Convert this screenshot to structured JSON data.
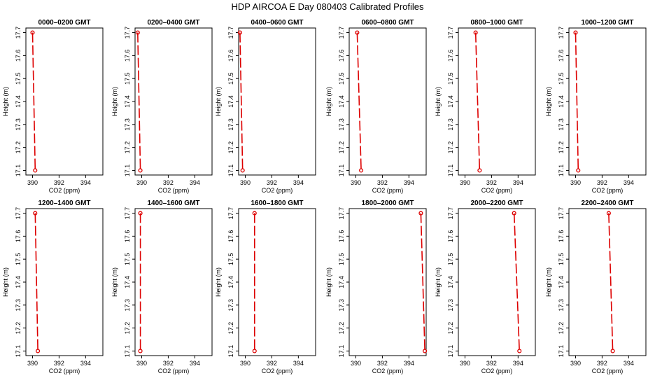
{
  "suptitle": "HDP AIRCOA E  Day 080403  Calibrated Profiles",
  "colors": {
    "series": "#dd0000",
    "axis": "#000000",
    "background": "#ffffff"
  },
  "chart_data": [
    {
      "type": "line",
      "title": "0000–0200 GMT",
      "xlabel": "CO2 (ppm)",
      "ylabel": "Height (m)",
      "xlim": [
        389.5,
        395.3
      ],
      "ylim": [
        17.08,
        17.72
      ],
      "xticks": [
        "390",
        "392",
        "394"
      ],
      "yticks": [
        "17.1",
        "17.2",
        "17.3",
        "17.4",
        "17.5",
        "17.6",
        "17.7"
      ],
      "points": [
        {
          "x": 390.0,
          "y": 17.7
        },
        {
          "x": 390.2,
          "y": 17.1
        }
      ]
    },
    {
      "type": "line",
      "title": "0200–0400 GMT",
      "xlabel": "CO2 (ppm)",
      "ylabel": "Height (m)",
      "xlim": [
        389.5,
        395.3
      ],
      "ylim": [
        17.08,
        17.72
      ],
      "xticks": [
        "390",
        "392",
        "394"
      ],
      "yticks": [
        "17.1",
        "17.2",
        "17.3",
        "17.4",
        "17.5",
        "17.6",
        "17.7"
      ],
      "points": [
        {
          "x": 389.7,
          "y": 17.7
        },
        {
          "x": 389.9,
          "y": 17.1
        }
      ]
    },
    {
      "type": "line",
      "title": "0400–0600 GMT",
      "xlabel": "CO2 (ppm)",
      "ylabel": "Height (m)",
      "xlim": [
        389.5,
        395.3
      ],
      "ylim": [
        17.08,
        17.72
      ],
      "xticks": [
        "390",
        "392",
        "394"
      ],
      "yticks": [
        "17.1",
        "17.2",
        "17.3",
        "17.4",
        "17.5",
        "17.6",
        "17.7"
      ],
      "points": [
        {
          "x": 389.6,
          "y": 17.7
        },
        {
          "x": 389.8,
          "y": 17.1
        }
      ]
    },
    {
      "type": "line",
      "title": "0600–0800 GMT",
      "xlabel": "CO2 (ppm)",
      "ylabel": "Height (m)",
      "xlim": [
        389.5,
        395.3
      ],
      "ylim": [
        17.08,
        17.72
      ],
      "xticks": [
        "390",
        "392",
        "394"
      ],
      "yticks": [
        "17.1",
        "17.2",
        "17.3",
        "17.4",
        "17.5",
        "17.6",
        "17.7"
      ],
      "points": [
        {
          "x": 390.1,
          "y": 17.7
        },
        {
          "x": 390.4,
          "y": 17.1
        }
      ]
    },
    {
      "type": "line",
      "title": "0800–1000 GMT",
      "xlabel": "CO2 (ppm)",
      "ylabel": "Height (m)",
      "xlim": [
        389.5,
        395.3
      ],
      "ylim": [
        17.08,
        17.72
      ],
      "xticks": [
        "390",
        "392",
        "394"
      ],
      "yticks": [
        "17.1",
        "17.2",
        "17.3",
        "17.4",
        "17.5",
        "17.6",
        "17.7"
      ],
      "points": [
        {
          "x": 390.8,
          "y": 17.7
        },
        {
          "x": 391.1,
          "y": 17.1
        }
      ]
    },
    {
      "type": "line",
      "title": "1000–1200 GMT",
      "xlabel": "CO2 (ppm)",
      "ylabel": "Height (m)",
      "xlim": [
        389.5,
        395.3
      ],
      "ylim": [
        17.08,
        17.72
      ],
      "xticks": [
        "390",
        "392",
        "394"
      ],
      "yticks": [
        "17.1",
        "17.2",
        "17.3",
        "17.4",
        "17.5",
        "17.6",
        "17.7"
      ],
      "points": [
        {
          "x": 390.0,
          "y": 17.7
        },
        {
          "x": 390.2,
          "y": 17.1
        }
      ]
    },
    {
      "type": "line",
      "title": "1200–1400 GMT",
      "xlabel": "CO2 (ppm)",
      "ylabel": "Height (m)",
      "xlim": [
        389.5,
        395.3
      ],
      "ylim": [
        17.08,
        17.72
      ],
      "xticks": [
        "390",
        "392",
        "394"
      ],
      "yticks": [
        "17.1",
        "17.2",
        "17.3",
        "17.4",
        "17.5",
        "17.6",
        "17.7"
      ],
      "points": [
        {
          "x": 390.2,
          "y": 17.7
        },
        {
          "x": 390.4,
          "y": 17.1
        }
      ]
    },
    {
      "type": "line",
      "title": "1400–1600 GMT",
      "xlabel": "CO2 (ppm)",
      "ylabel": "Height (m)",
      "xlim": [
        389.5,
        395.3
      ],
      "ylim": [
        17.08,
        17.72
      ],
      "xticks": [
        "390",
        "392",
        "394"
      ],
      "yticks": [
        "17.1",
        "17.2",
        "17.3",
        "17.4",
        "17.5",
        "17.6",
        "17.7"
      ],
      "points": [
        {
          "x": 389.9,
          "y": 17.7
        },
        {
          "x": 389.9,
          "y": 17.1
        }
      ]
    },
    {
      "type": "line",
      "title": "1600–1800 GMT",
      "xlabel": "CO2 (ppm)",
      "ylabel": "Height (m)",
      "xlim": [
        389.5,
        395.3
      ],
      "ylim": [
        17.08,
        17.72
      ],
      "xticks": [
        "390",
        "392",
        "394"
      ],
      "yticks": [
        "17.1",
        "17.2",
        "17.3",
        "17.4",
        "17.5",
        "17.6",
        "17.7"
      ],
      "points": [
        {
          "x": 390.7,
          "y": 17.7
        },
        {
          "x": 390.7,
          "y": 17.1
        }
      ]
    },
    {
      "type": "line",
      "title": "1800–2000 GMT",
      "xlabel": "CO2 (ppm)",
      "ylabel": "Height (m)",
      "xlim": [
        389.5,
        395.3
      ],
      "ylim": [
        17.08,
        17.72
      ],
      "xticks": [
        "390",
        "392",
        "394"
      ],
      "yticks": [
        "17.1",
        "17.2",
        "17.3",
        "17.4",
        "17.5",
        "17.6",
        "17.7"
      ],
      "points": [
        {
          "x": 394.9,
          "y": 17.7
        },
        {
          "x": 395.2,
          "y": 17.1
        }
      ]
    },
    {
      "type": "line",
      "title": "2000–2200 GMT",
      "xlabel": "CO2 (ppm)",
      "ylabel": "Height (m)",
      "xlim": [
        389.5,
        395.3
      ],
      "ylim": [
        17.08,
        17.72
      ],
      "xticks": [
        "390",
        "392",
        "394"
      ],
      "yticks": [
        "17.1",
        "17.2",
        "17.3",
        "17.4",
        "17.5",
        "17.6",
        "17.7"
      ],
      "points": [
        {
          "x": 393.7,
          "y": 17.7
        },
        {
          "x": 394.1,
          "y": 17.1
        }
      ]
    },
    {
      "type": "line",
      "title": "2200–2400 GMT",
      "xlabel": "CO2 (ppm)",
      "ylabel": "Height (m)",
      "xlim": [
        389.5,
        395.3
      ],
      "ylim": [
        17.08,
        17.72
      ],
      "xticks": [
        "390",
        "392",
        "394"
      ],
      "yticks": [
        "17.1",
        "17.2",
        "17.3",
        "17.4",
        "17.5",
        "17.6",
        "17.7"
      ],
      "points": [
        {
          "x": 392.5,
          "y": 17.7
        },
        {
          "x": 392.8,
          "y": 17.1
        }
      ]
    }
  ]
}
